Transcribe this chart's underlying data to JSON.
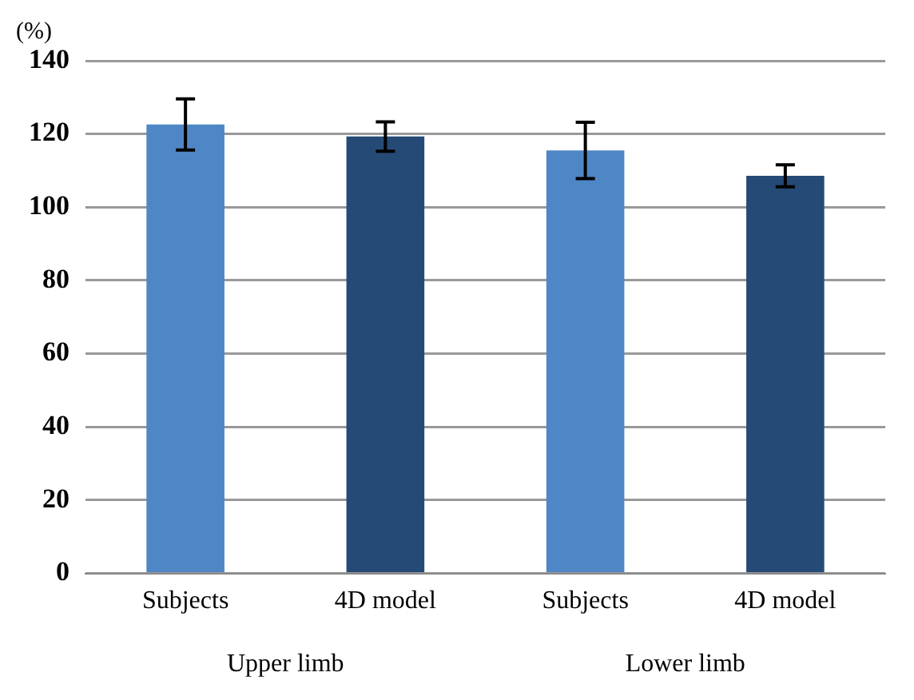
{
  "chart_data": {
    "type": "bar",
    "ylabel": "(%)",
    "categories": [
      "Subjects",
      "4D model",
      "Subjects",
      "4D model"
    ],
    "values": [
      122.6,
      119.3,
      115.5,
      108.6
    ],
    "errors": [
      7,
      4,
      7.7,
      3
    ],
    "colors": [
      "#4f86c6",
      "#254a76",
      "#4f86c6",
      "#254a76"
    ],
    "ylim": [
      0,
      140
    ],
    "yticks": [
      0,
      20,
      40,
      60,
      80,
      100,
      120,
      140
    ],
    "grid": "y",
    "annotations": [
      "Upper limb",
      "Lower limb"
    ]
  }
}
